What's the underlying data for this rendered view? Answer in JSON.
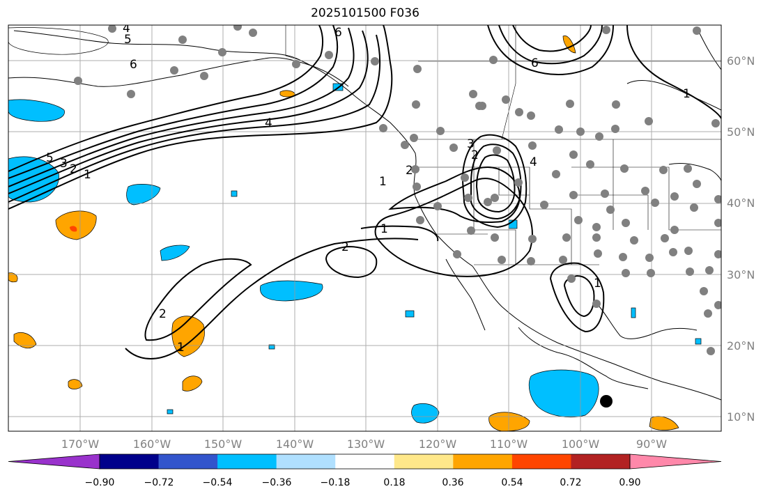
{
  "title": "2025101500 F036",
  "latitude_labels": [
    "60°N",
    "50°N",
    "40°N",
    "30°N",
    "20°N",
    "10°N"
  ],
  "longitude_labels": [
    "170°W",
    "160°W",
    "150°W",
    "140°W",
    "130°W",
    "120°W",
    "110°W",
    "100°W",
    "90°W"
  ],
  "colorbar": {
    "tick_labels": [
      "−0.90",
      "−0.72",
      "−0.54",
      "−0.36",
      "−0.18",
      "0.18",
      "0.36",
      "0.54",
      "0.72",
      "0.90"
    ],
    "colors": [
      "#9932cc",
      "#00008b",
      "#3355cc",
      "#00bfff",
      "#b0e0ff",
      "#ffffff",
      "#ffe88a",
      "#ffa500",
      "#ff4500",
      "#b22222",
      "#ff88aa"
    ]
  },
  "contour_labels": [
    "1",
    "2",
    "3",
    "4",
    "5",
    "6",
    "2",
    "1",
    "1",
    "2",
    "2",
    "1",
    "2",
    "3",
    "4",
    "6",
    "5",
    "4",
    "6",
    "1",
    "1"
  ],
  "colors": {
    "positive_fill": "#ffa500",
    "positive_strong": "#ff4500",
    "negative_fill": "#00bfff",
    "grid": "#999999",
    "station_dot": "#808080"
  }
}
